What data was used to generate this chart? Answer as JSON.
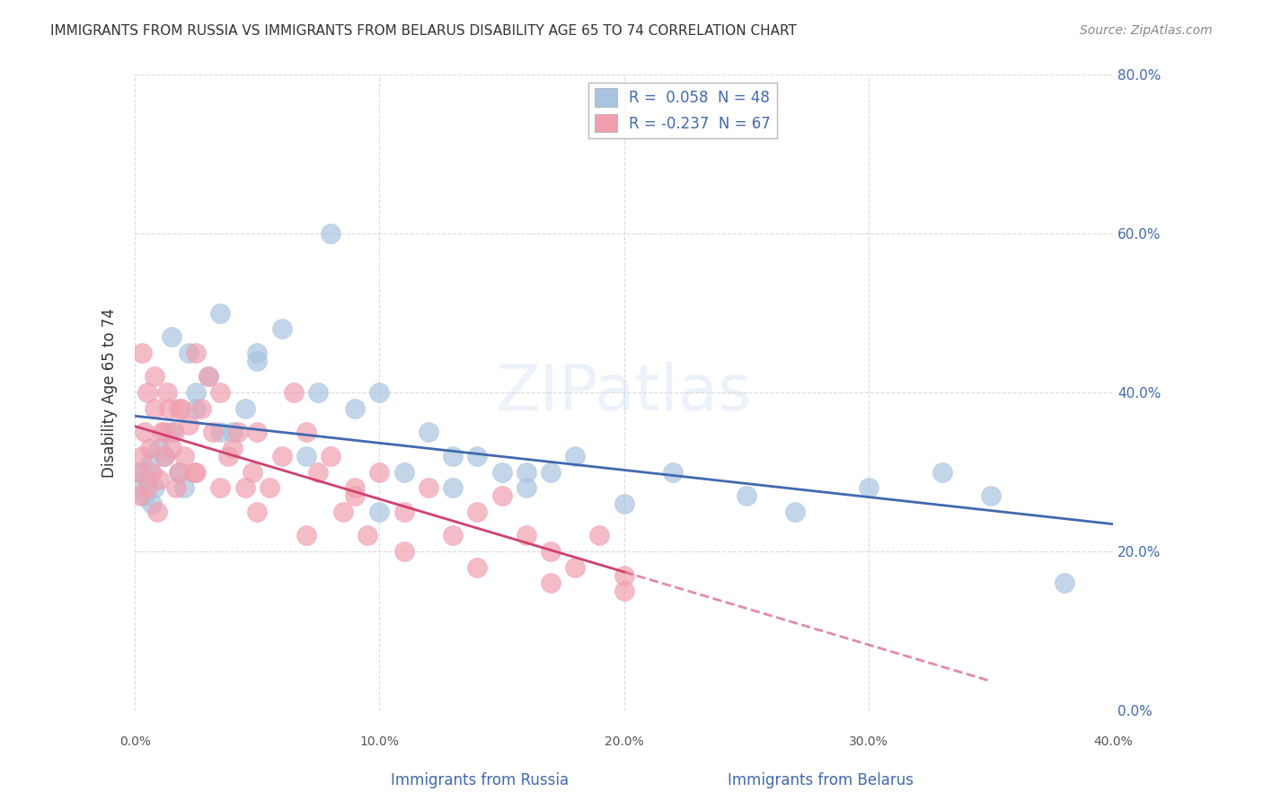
{
  "title": "IMMIGRANTS FROM RUSSIA VS IMMIGRANTS FROM BELARUS DISABILITY AGE 65 TO 74 CORRELATION CHART",
  "source": "Source: ZipAtlas.com",
  "xlabel_left": "Immigrants from Russia",
  "xlabel_right": "Immigrants from Belarus",
  "ylabel": "Disability Age 65 to 74",
  "xlim": [
    0.0,
    0.4
  ],
  "ylim": [
    0.0,
    0.8
  ],
  "xticks": [
    0.0,
    0.1,
    0.2,
    0.3,
    0.4
  ],
  "yticks": [
    0.0,
    0.2,
    0.4,
    0.6,
    0.8
  ],
  "xtick_labels": [
    "0.0%",
    "10.0%",
    "20.0%",
    "30.0%",
    "40.0%"
  ],
  "ytick_labels": [
    "0.0%",
    "20.0%",
    "40.0%",
    "60.0%",
    "80.0%"
  ],
  "russia_R": 0.058,
  "russia_N": 48,
  "belarus_R": -0.237,
  "belarus_N": 67,
  "russia_color": "#a8c4e0",
  "belarus_color": "#f0a0b0",
  "russia_line_color": "#4169b0",
  "belarus_line_color": "#d04070",
  "watermark": "ZIPatlas",
  "background_color": "#ffffff",
  "russia_scatter_x": [
    0.002,
    0.003,
    0.004,
    0.005,
    0.006,
    0.007,
    0.008,
    0.01,
    0.012,
    0.015,
    0.018,
    0.02,
    0.022,
    0.025,
    0.03,
    0.035,
    0.04,
    0.045,
    0.05,
    0.06,
    0.07,
    0.08,
    0.09,
    0.1,
    0.11,
    0.12,
    0.13,
    0.14,
    0.15,
    0.16,
    0.17,
    0.18,
    0.2,
    0.22,
    0.25,
    0.27,
    0.3,
    0.33,
    0.35,
    0.38,
    0.015,
    0.025,
    0.035,
    0.05,
    0.075,
    0.1,
    0.13,
    0.16
  ],
  "russia_scatter_y": [
    0.28,
    0.3,
    0.27,
    0.29,
    0.31,
    0.26,
    0.28,
    0.33,
    0.32,
    0.35,
    0.3,
    0.28,
    0.45,
    0.38,
    0.42,
    0.5,
    0.35,
    0.38,
    0.45,
    0.48,
    0.32,
    0.6,
    0.38,
    0.4,
    0.3,
    0.35,
    0.28,
    0.32,
    0.3,
    0.28,
    0.3,
    0.32,
    0.26,
    0.3,
    0.27,
    0.25,
    0.28,
    0.3,
    0.27,
    0.16,
    0.47,
    0.4,
    0.35,
    0.44,
    0.4,
    0.25,
    0.32,
    0.3
  ],
  "belarus_scatter_x": [
    0.001,
    0.002,
    0.003,
    0.004,
    0.005,
    0.006,
    0.007,
    0.008,
    0.009,
    0.01,
    0.011,
    0.012,
    0.013,
    0.014,
    0.015,
    0.016,
    0.017,
    0.018,
    0.019,
    0.02,
    0.022,
    0.024,
    0.025,
    0.027,
    0.03,
    0.032,
    0.035,
    0.038,
    0.04,
    0.042,
    0.045,
    0.048,
    0.05,
    0.055,
    0.06,
    0.065,
    0.07,
    0.075,
    0.08,
    0.085,
    0.09,
    0.095,
    0.1,
    0.11,
    0.12,
    0.13,
    0.14,
    0.15,
    0.16,
    0.17,
    0.18,
    0.19,
    0.2,
    0.003,
    0.005,
    0.008,
    0.012,
    0.018,
    0.025,
    0.035,
    0.05,
    0.07,
    0.09,
    0.11,
    0.14,
    0.17,
    0.2
  ],
  "belarus_scatter_y": [
    0.3,
    0.27,
    0.32,
    0.35,
    0.28,
    0.33,
    0.3,
    0.38,
    0.25,
    0.29,
    0.35,
    0.32,
    0.4,
    0.38,
    0.33,
    0.35,
    0.28,
    0.3,
    0.38,
    0.32,
    0.36,
    0.3,
    0.45,
    0.38,
    0.42,
    0.35,
    0.4,
    0.32,
    0.33,
    0.35,
    0.28,
    0.3,
    0.35,
    0.28,
    0.32,
    0.4,
    0.35,
    0.3,
    0.32,
    0.25,
    0.28,
    0.22,
    0.3,
    0.25,
    0.28,
    0.22,
    0.25,
    0.27,
    0.22,
    0.2,
    0.18,
    0.22,
    0.17,
    0.45,
    0.4,
    0.42,
    0.35,
    0.38,
    0.3,
    0.28,
    0.25,
    0.22,
    0.27,
    0.2,
    0.18,
    0.16,
    0.15
  ]
}
